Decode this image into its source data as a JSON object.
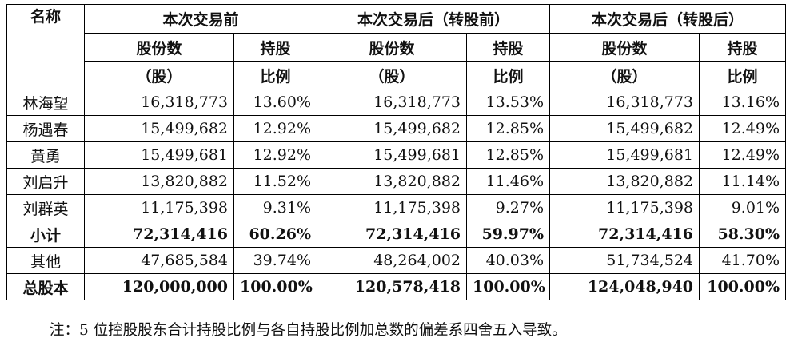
{
  "table": {
    "name_header": "名称",
    "groups": [
      "本次交易前",
      "本次交易后（转股前）",
      "本次交易后（转股后）"
    ],
    "sub_shares_line1": "股份数",
    "sub_shares_line2": "（股）",
    "sub_ratio_line1": "持股",
    "sub_ratio_line2": "比例",
    "rows": [
      {
        "name": "林海望",
        "v": [
          "16,318,773",
          "13.60%",
          "16,318,773",
          "13.53%",
          "16,318,773",
          "13.16%"
        ],
        "bold": false
      },
      {
        "name": "杨遇春",
        "v": [
          "15,499,682",
          "12.92%",
          "15,499,682",
          "12.85%",
          "15,499,682",
          "12.49%"
        ],
        "bold": false
      },
      {
        "name": "黄勇",
        "v": [
          "15,499,681",
          "12.92%",
          "15,499,681",
          "12.85%",
          "15,499,681",
          "12.49%"
        ],
        "bold": false
      },
      {
        "name": "刘启升",
        "v": [
          "13,820,882",
          "11.52%",
          "13,820,882",
          "11.46%",
          "13,820,882",
          "11.14%"
        ],
        "bold": false
      },
      {
        "name": "刘群英",
        "v": [
          "11,175,398",
          "9.31%",
          "11,175,398",
          "9.27%",
          "11,175,398",
          "9.01%"
        ],
        "bold": false
      },
      {
        "name": "小计",
        "v": [
          "72,314,416",
          "60.26%",
          "72,314,416",
          "59.97%",
          "72,314,416",
          "58.30%"
        ],
        "bold": true
      },
      {
        "name": "其他",
        "v": [
          "47,685,584",
          "39.74%",
          "48,264,002",
          "40.03%",
          "51,734,524",
          "41.70%"
        ],
        "bold": false
      },
      {
        "name": "总股本",
        "v": [
          "120,000,000",
          "100.00%",
          "120,578,418",
          "100.00%",
          "124,048,940",
          "100.00%"
        ],
        "bold": true
      }
    ]
  },
  "note": "注：5 位控股股东合计持股比例与各自持股比例加总数的偏差系四舍五入导致。"
}
